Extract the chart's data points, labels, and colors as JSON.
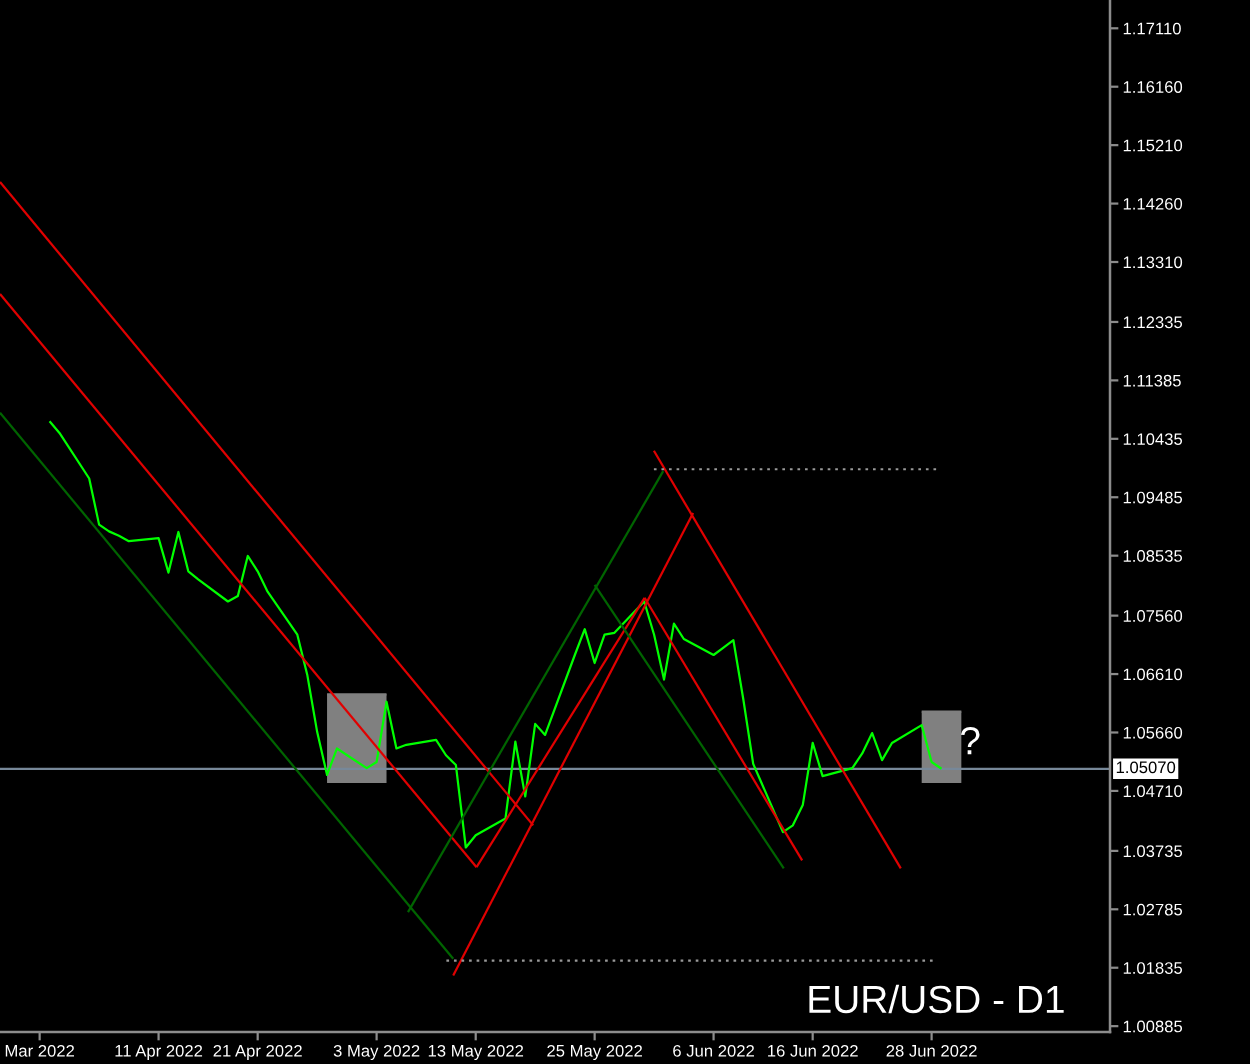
{
  "chart_data": {
    "type": "line",
    "title": "EUR/USD - D1",
    "xlim": [
      "2022-03-26",
      "2022-07-16"
    ],
    "ylim": [
      1.0079,
      1.1757
    ],
    "xticks": [
      {
        "value": "2022-03-30",
        "label": "Mar 2022"
      },
      {
        "value": "2022-04-11",
        "label": "11 Apr 2022"
      },
      {
        "value": "2022-04-21",
        "label": "21 Apr 2022"
      },
      {
        "value": "2022-05-03",
        "label": "3 May 2022"
      },
      {
        "value": "2022-05-13",
        "label": "13 May 2022"
      },
      {
        "value": "2022-05-25",
        "label": "25 May 2022"
      },
      {
        "value": "2022-06-06",
        "label": "6 Jun 2022"
      },
      {
        "value": "2022-06-16",
        "label": "16 Jun 2022"
      },
      {
        "value": "2022-06-28",
        "label": "28 Jun 2022"
      }
    ],
    "yticks": [
      {
        "value": 1.1711,
        "label": "1.17110"
      },
      {
        "value": 1.1616,
        "label": "1.16160"
      },
      {
        "value": 1.1521,
        "label": "1.15210"
      },
      {
        "value": 1.1426,
        "label": "1.14260"
      },
      {
        "value": 1.1331,
        "label": "1.13310"
      },
      {
        "value": 1.12335,
        "label": "1.12335"
      },
      {
        "value": 1.11385,
        "label": "1.11385"
      },
      {
        "value": 1.10435,
        "label": "1.10435"
      },
      {
        "value": 1.09485,
        "label": "1.09485"
      },
      {
        "value": 1.08535,
        "label": "1.08535"
      },
      {
        "value": 1.0756,
        "label": "1.07560"
      },
      {
        "value": 1.0661,
        "label": "1.06610"
      },
      {
        "value": 1.0566,
        "label": "1.05660"
      },
      {
        "value": 1.0471,
        "label": "1.04710"
      },
      {
        "value": 1.03735,
        "label": "1.03735"
      },
      {
        "value": 1.02785,
        "label": "1.02785"
      },
      {
        "value": 1.01835,
        "label": "1.01835"
      },
      {
        "value": 1.00885,
        "label": "1.00885"
      }
    ],
    "series": [
      {
        "type": "line",
        "x": [
          "2022-04-28",
          "2022-05-04"
        ],
        "values": [
          1.0628,
          1.0628
        ],
        "lower": [
          1.0484,
          1.0484
        ],
        "upper": [
          1.0628,
          1.0628
        ],
        "color": "#808080"
      },
      {
        "type": "line",
        "x": [
          "2022-06-27",
          "2022-07-01"
        ],
        "values": [
          1.06,
          1.06
        ],
        "lower": [
          1.0484,
          1.0484
        ],
        "upper": [
          1.06,
          1.06
        ],
        "color": "#808080"
      },
      {
        "color": "#00ff00",
        "x": [
          "2022-03-31",
          "2022-04-01",
          "2022-04-04",
          "2022-04-05",
          "2022-04-06",
          "2022-04-07",
          "2022-04-08",
          "2022-04-11",
          "2022-04-12",
          "2022-04-13",
          "2022-04-14",
          "2022-04-15",
          "2022-04-18",
          "2022-04-19",
          "2022-04-20",
          "2022-04-21",
          "2022-04-22",
          "2022-04-25",
          "2022-04-26",
          "2022-04-27",
          "2022-04-28",
          "2022-04-29",
          "2022-05-02",
          "2022-05-03",
          "2022-05-04",
          "2022-05-05",
          "2022-05-06",
          "2022-05-09",
          "2022-05-10",
          "2022-05-11",
          "2022-05-12",
          "2022-05-13",
          "2022-05-16",
          "2022-05-17",
          "2022-05-18",
          "2022-05-19",
          "2022-05-20",
          "2022-05-23",
          "2022-05-24",
          "2022-05-25",
          "2022-05-26",
          "2022-05-27",
          "2022-05-30",
          "2022-05-31",
          "2022-06-01",
          "2022-06-02",
          "2022-06-03",
          "2022-06-06",
          "2022-06-07",
          "2022-06-08",
          "2022-06-09",
          "2022-06-10",
          "2022-06-13",
          "2022-06-14",
          "2022-06-15",
          "2022-06-16",
          "2022-06-17",
          "2022-06-20",
          "2022-06-21",
          "2022-06-22",
          "2022-06-23",
          "2022-06-24",
          "2022-06-27",
          "2022-06-28",
          "2022-06-29"
        ],
        "values": [
          1.1072,
          1.1053,
          1.0979,
          1.0904,
          1.0893,
          1.0886,
          1.0877,
          1.0882,
          1.0826,
          1.0892,
          1.0828,
          1.0815,
          1.0779,
          1.0788,
          1.0853,
          1.0828,
          1.0795,
          1.0725,
          1.066,
          1.0567,
          1.0497,
          1.054,
          1.0508,
          1.0518,
          1.0616,
          1.054,
          1.0546,
          1.0554,
          1.0529,
          1.0513,
          1.0379,
          1.0399,
          1.0426,
          1.0551,
          1.0462,
          1.058,
          1.0562,
          1.0692,
          1.0734,
          1.0679,
          1.0725,
          1.0728,
          1.0779,
          1.0725,
          1.0652,
          1.0743,
          1.0718,
          1.0692,
          1.0704,
          1.0716,
          1.062,
          1.0515,
          1.0404,
          1.0415,
          1.0448,
          1.0549,
          1.0495,
          1.0508,
          1.0532,
          1.0565,
          1.0521,
          1.0549,
          1.0578,
          1.0518,
          1.0507
        ]
      },
      {
        "type": "line",
        "color": "#e00000",
        "x": [
          "2022-03-26",
          "2022-05-18T19:12"
        ],
        "values": [
          1.1461,
          1.0415
        ]
      },
      {
        "type": "line",
        "color": "#e00000",
        "x": [
          "2022-03-26",
          "2022-05-13T02:00"
        ],
        "values": [
          1.1279,
          1.0347
        ]
      },
      {
        "type": "line",
        "color": "#e00000",
        "x": [
          "2022-05-13T02:00",
          "2022-05-30T01:00"
        ],
        "values": [
          1.0347,
          1.0785
        ]
      },
      {
        "type": "line",
        "color": "#e00000",
        "x": [
          "2022-05-10T17:30",
          "2022-06-03T22:30"
        ],
        "values": [
          1.0171,
          1.0923
        ]
      },
      {
        "type": "line",
        "color": "#e00000",
        "x": [
          "2022-05-30T01:00",
          "2022-06-14T22:30"
        ],
        "values": [
          1.0785,
          1.0358
        ]
      },
      {
        "type": "line",
        "color": "#e00000",
        "x": [
          "2022-05-30T23:30",
          "2022-06-24T21:20"
        ],
        "values": [
          1.1024,
          1.0345
        ]
      },
      {
        "type": "line",
        "color": "#006400",
        "x": [
          "2022-03-26",
          "2022-05-10T17:30"
        ],
        "values": [
          1.1086,
          1.0198
        ]
      },
      {
        "type": "line",
        "color": "#006400",
        "x": [
          "2022-05-06T04:00",
          "2022-05-31T22:00"
        ],
        "values": [
          1.0274,
          1.0991
        ]
      },
      {
        "type": "line",
        "color": "#006400",
        "x": [
          "2022-05-25",
          "2022-06-13T02:00"
        ],
        "values": [
          1.0806,
          1.0345
        ]
      },
      {
        "type": "line",
        "color": "#999999",
        "line_style": "dotted",
        "x": [
          "2022-05-30T23:30",
          "2022-06-28T18:00"
        ],
        "values": [
          1.0994,
          1.0994
        ]
      },
      {
        "type": "line",
        "color": "#999999",
        "line_style": "dotted",
        "x": [
          "2022-05-10T01:00",
          "2022-06-28T12:30"
        ],
        "values": [
          1.0195,
          1.0195
        ]
      }
    ],
    "ref_lines": [
      {
        "axis": "y",
        "value": 1.0507,
        "label": "1.05070",
        "color": "#778899"
      }
    ],
    "annotations": [
      "?"
    ]
  }
}
